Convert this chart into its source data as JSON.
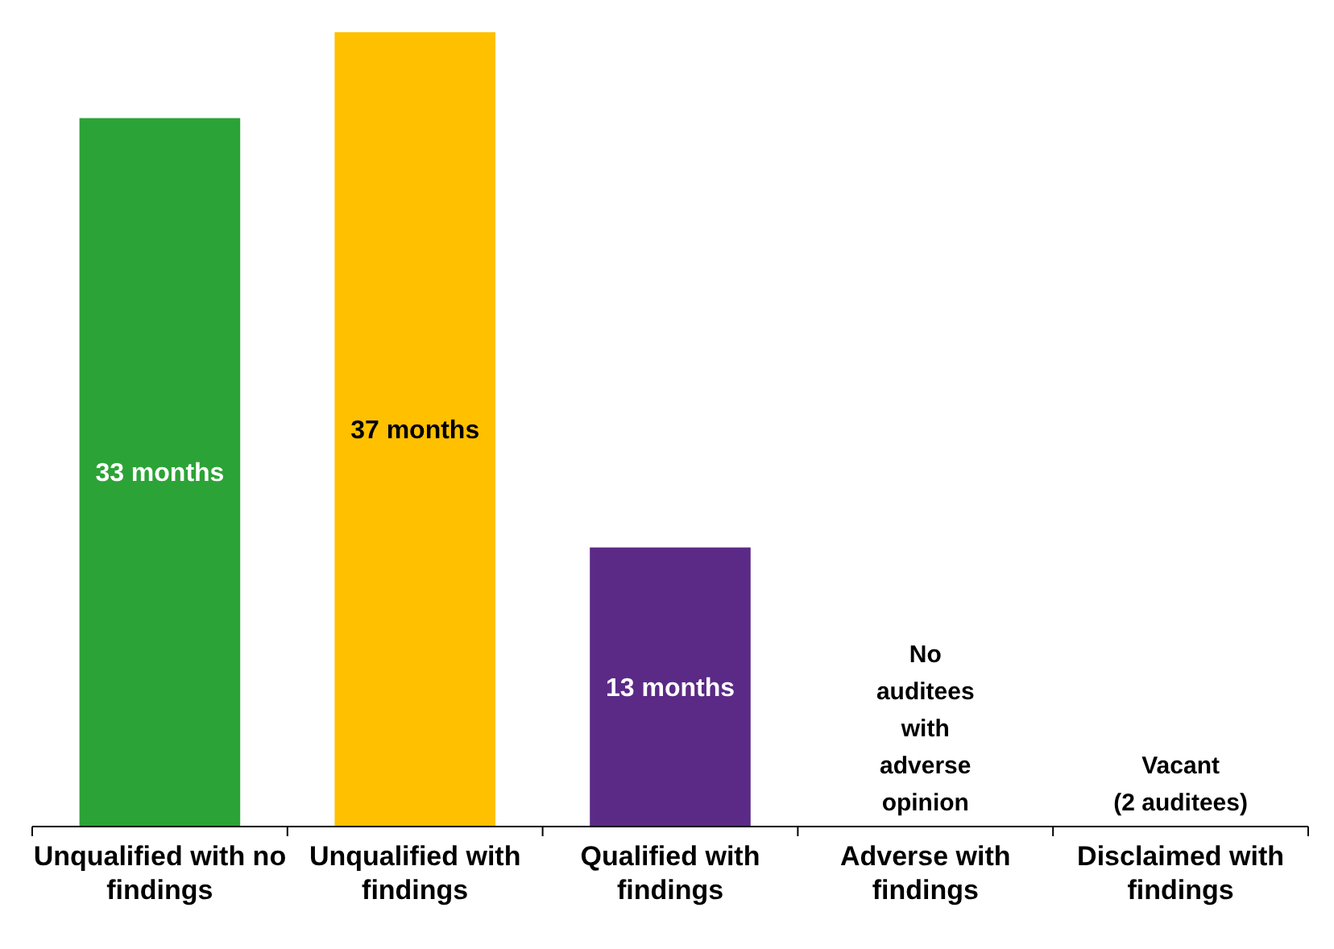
{
  "chart_data": {
    "type": "bar",
    "categories": [
      "Unqualified with no findings",
      "Unqualified with findings",
      "Qualified with findings",
      "Adverse with findings",
      "Disclaimed with findings"
    ],
    "values": [
      33,
      37,
      13,
      null,
      null
    ],
    "colors": [
      "#2ca336",
      "#ffc000",
      "#5b2a86",
      null,
      null
    ],
    "value_labels": [
      "33 months",
      "37 months",
      "13 months",
      null,
      null
    ],
    "annotations": [
      "No\nauditees\nwith\nadverse\nopinion",
      "Vacant\n(2 auditees)"
    ]
  }
}
